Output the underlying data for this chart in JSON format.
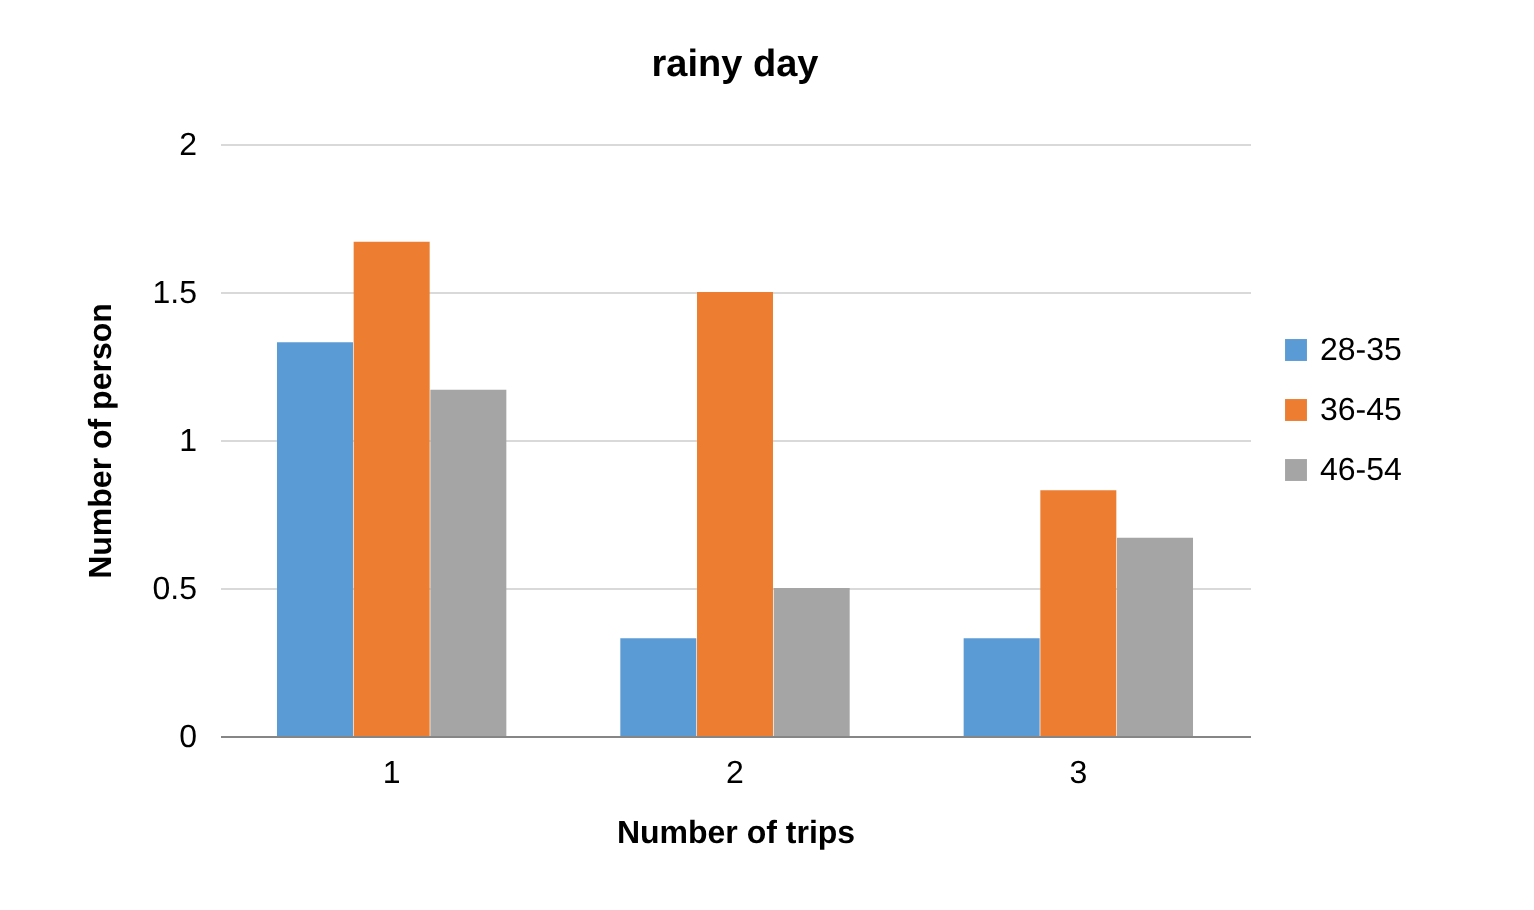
{
  "chart_data": {
    "type": "bar",
    "title": "rainy day",
    "xlabel": "Number of trips",
    "ylabel": "Number of person",
    "categories": [
      "1",
      "2",
      "3"
    ],
    "series": [
      {
        "name": "28-35",
        "color": "#5b9bd5",
        "values": [
          1.33,
          0.33,
          0.33
        ]
      },
      {
        "name": "36-45",
        "color": "#ed7d31",
        "values": [
          1.67,
          1.5,
          0.83
        ]
      },
      {
        "name": "46-54",
        "color": "#a5a5a5",
        "values": [
          1.17,
          0.5,
          0.67
        ]
      }
    ],
    "ylim": [
      0,
      2
    ],
    "yticks": [
      0,
      0.5,
      1,
      1.5,
      2
    ],
    "grid": "y",
    "legend": "right"
  }
}
